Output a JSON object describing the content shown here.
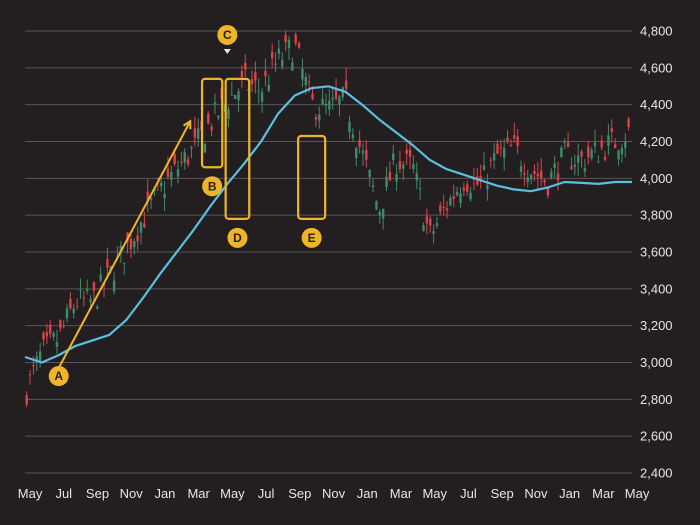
{
  "chart_data": {
    "type": "line",
    "title": "",
    "xlabel": "",
    "ylabel": "",
    "ylim": [
      2400,
      4800
    ],
    "y_ticks": [
      2400,
      2600,
      2800,
      3000,
      3200,
      3400,
      3600,
      3800,
      4000,
      4200,
      4400,
      4600,
      4800
    ],
    "y_tick_labels": [
      "2,400",
      "2,600",
      "2,800",
      "3,000",
      "3,200",
      "3,400",
      "3,600",
      "3,800",
      "4,000",
      "4,200",
      "4,400",
      "4,600",
      "4,800"
    ],
    "x_ticks": [
      "May",
      "Jul",
      "Sep",
      "Nov",
      "Jan",
      "Mar",
      "May",
      "Jul",
      "Sep",
      "Nov",
      "Jan",
      "Mar",
      "May",
      "Jul",
      "Sep",
      "Nov",
      "Jan",
      "Mar",
      "May"
    ],
    "x_range_months": [
      0,
      36
    ],
    "grid": true,
    "colors": {
      "background": "#231f20",
      "grid": "#5a5657",
      "tick_text": "#e6e6e6",
      "candle_up": "#3f8a6a",
      "candle_down": "#d9434b",
      "moving_average": "#5bbfe0",
      "annotation": "#f0b429"
    },
    "series": [
      {
        "kind": "candles",
        "x": [
          0,
          1,
          2,
          3,
          4,
          5,
          6,
          7,
          8,
          9,
          10,
          11,
          12,
          13,
          14,
          15,
          16,
          17,
          18,
          19,
          20,
          21,
          22,
          23,
          24,
          25,
          26,
          27,
          28,
          29,
          30,
          31,
          32,
          33,
          34,
          35,
          35.8
        ],
        "values": [
          2830,
          3050,
          3130,
          3330,
          3330,
          3470,
          3620,
          3780,
          3930,
          4050,
          4160,
          4300,
          4420,
          4520,
          4480,
          4640,
          4720,
          4400,
          4370,
          4430,
          4130,
          3830,
          4100,
          4060,
          3680,
          3850,
          4000,
          3960,
          4120,
          4160,
          4050,
          3980,
          4120,
          4100,
          4150,
          4200,
          4250
        ]
      },
      {
        "kind": "moving_average",
        "x": [
          0,
          1,
          2,
          3,
          4,
          5,
          6,
          7,
          8,
          9,
          10,
          11,
          12,
          13,
          14,
          15,
          16,
          17,
          18,
          19,
          20,
          21,
          22,
          23,
          24,
          25,
          26,
          27,
          28,
          29,
          30,
          31,
          32,
          33,
          34,
          35,
          36
        ],
        "values": [
          3030,
          3000,
          3040,
          3090,
          3120,
          3150,
          3230,
          3350,
          3480,
          3600,
          3720,
          3850,
          3970,
          4080,
          4200,
          4350,
          4450,
          4490,
          4500,
          4470,
          4400,
          4320,
          4250,
          4180,
          4100,
          4050,
          4020,
          3990,
          3960,
          3940,
          3930,
          3950,
          3980,
          3975,
          3970,
          3980,
          3980
        ]
      }
    ],
    "annotations": [
      {
        "label": "A",
        "type": "arrow",
        "from": [
          2,
          2970
        ],
        "to": [
          9.8,
          4310
        ]
      },
      {
        "label": "B",
        "type": "box",
        "x0": 10.5,
        "x1": 11.7,
        "y0": 4060,
        "y1": 4540
      },
      {
        "label": "C",
        "type": "point",
        "x": 12,
        "y": 4670
      },
      {
        "label": "D",
        "type": "box",
        "x0": 11.9,
        "x1": 13.3,
        "y0": 3780,
        "y1": 4540
      },
      {
        "label": "E",
        "type": "box",
        "x0": 16.2,
        "x1": 17.8,
        "y0": 3780,
        "y1": 4230
      }
    ]
  }
}
